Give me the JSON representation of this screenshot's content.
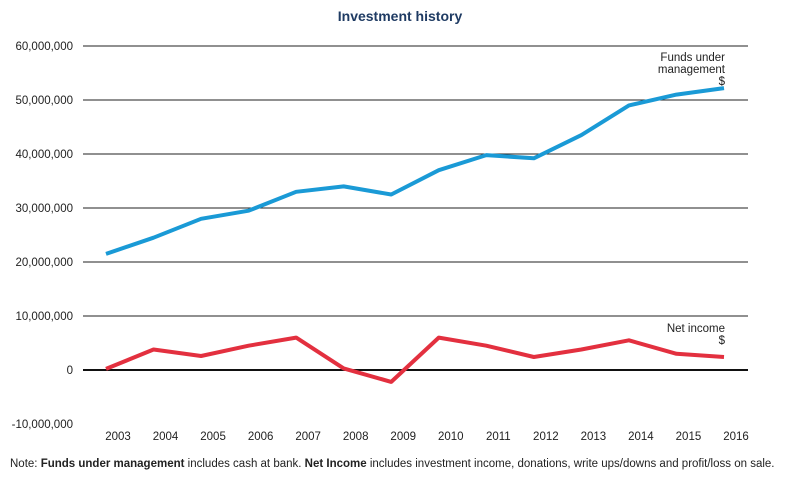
{
  "chart_data": {
    "type": "line",
    "title": "Investment history",
    "x": [
      "2003",
      "2004",
      "2005",
      "2006",
      "2007",
      "2008",
      "2009",
      "2010",
      "2011",
      "2012",
      "2013",
      "2014",
      "2015",
      "2016"
    ],
    "series": [
      {
        "name": "Funds under management",
        "label_lines": [
          "Funds under",
          "management",
          "$"
        ],
        "color": "#1a9ad6",
        "values": [
          21500000,
          24500000,
          28000000,
          29500000,
          33000000,
          34000000,
          32500000,
          37000000,
          39800000,
          39200000,
          43500000,
          49000000,
          51000000,
          52200000
        ]
      },
      {
        "name": "Net income",
        "label_lines": [
          "Net income",
          "$"
        ],
        "color": "#e3303f",
        "values": [
          200000,
          3800000,
          2600000,
          4500000,
          6000000,
          300000,
          -2200000,
          6000000,
          4500000,
          2400000,
          3800000,
          5500000,
          3000000,
          2400000
        ]
      }
    ],
    "yticks": [
      {
        "v": 60000000,
        "label": "60,000,000"
      },
      {
        "v": 50000000,
        "label": "50,000,000"
      },
      {
        "v": 40000000,
        "label": "40,000,000"
      },
      {
        "v": 30000000,
        "label": "30,000,000"
      },
      {
        "v": 20000000,
        "label": "20,000,000"
      },
      {
        "v": 10000000,
        "label": "10,000,000"
      },
      {
        "v": 0,
        "label": "0"
      },
      {
        "v": -10000000,
        "label": "-10,000,000"
      }
    ],
    "ylim": [
      -10000000,
      60000000
    ],
    "grid": true
  },
  "note": {
    "prefix": "Note: ",
    "term1": "Funds under management",
    "text1": " includes cash at bank. ",
    "term2": "Net Income",
    "text2": " includes investment income, donations, write ups/downs and profit/loss on sale."
  }
}
